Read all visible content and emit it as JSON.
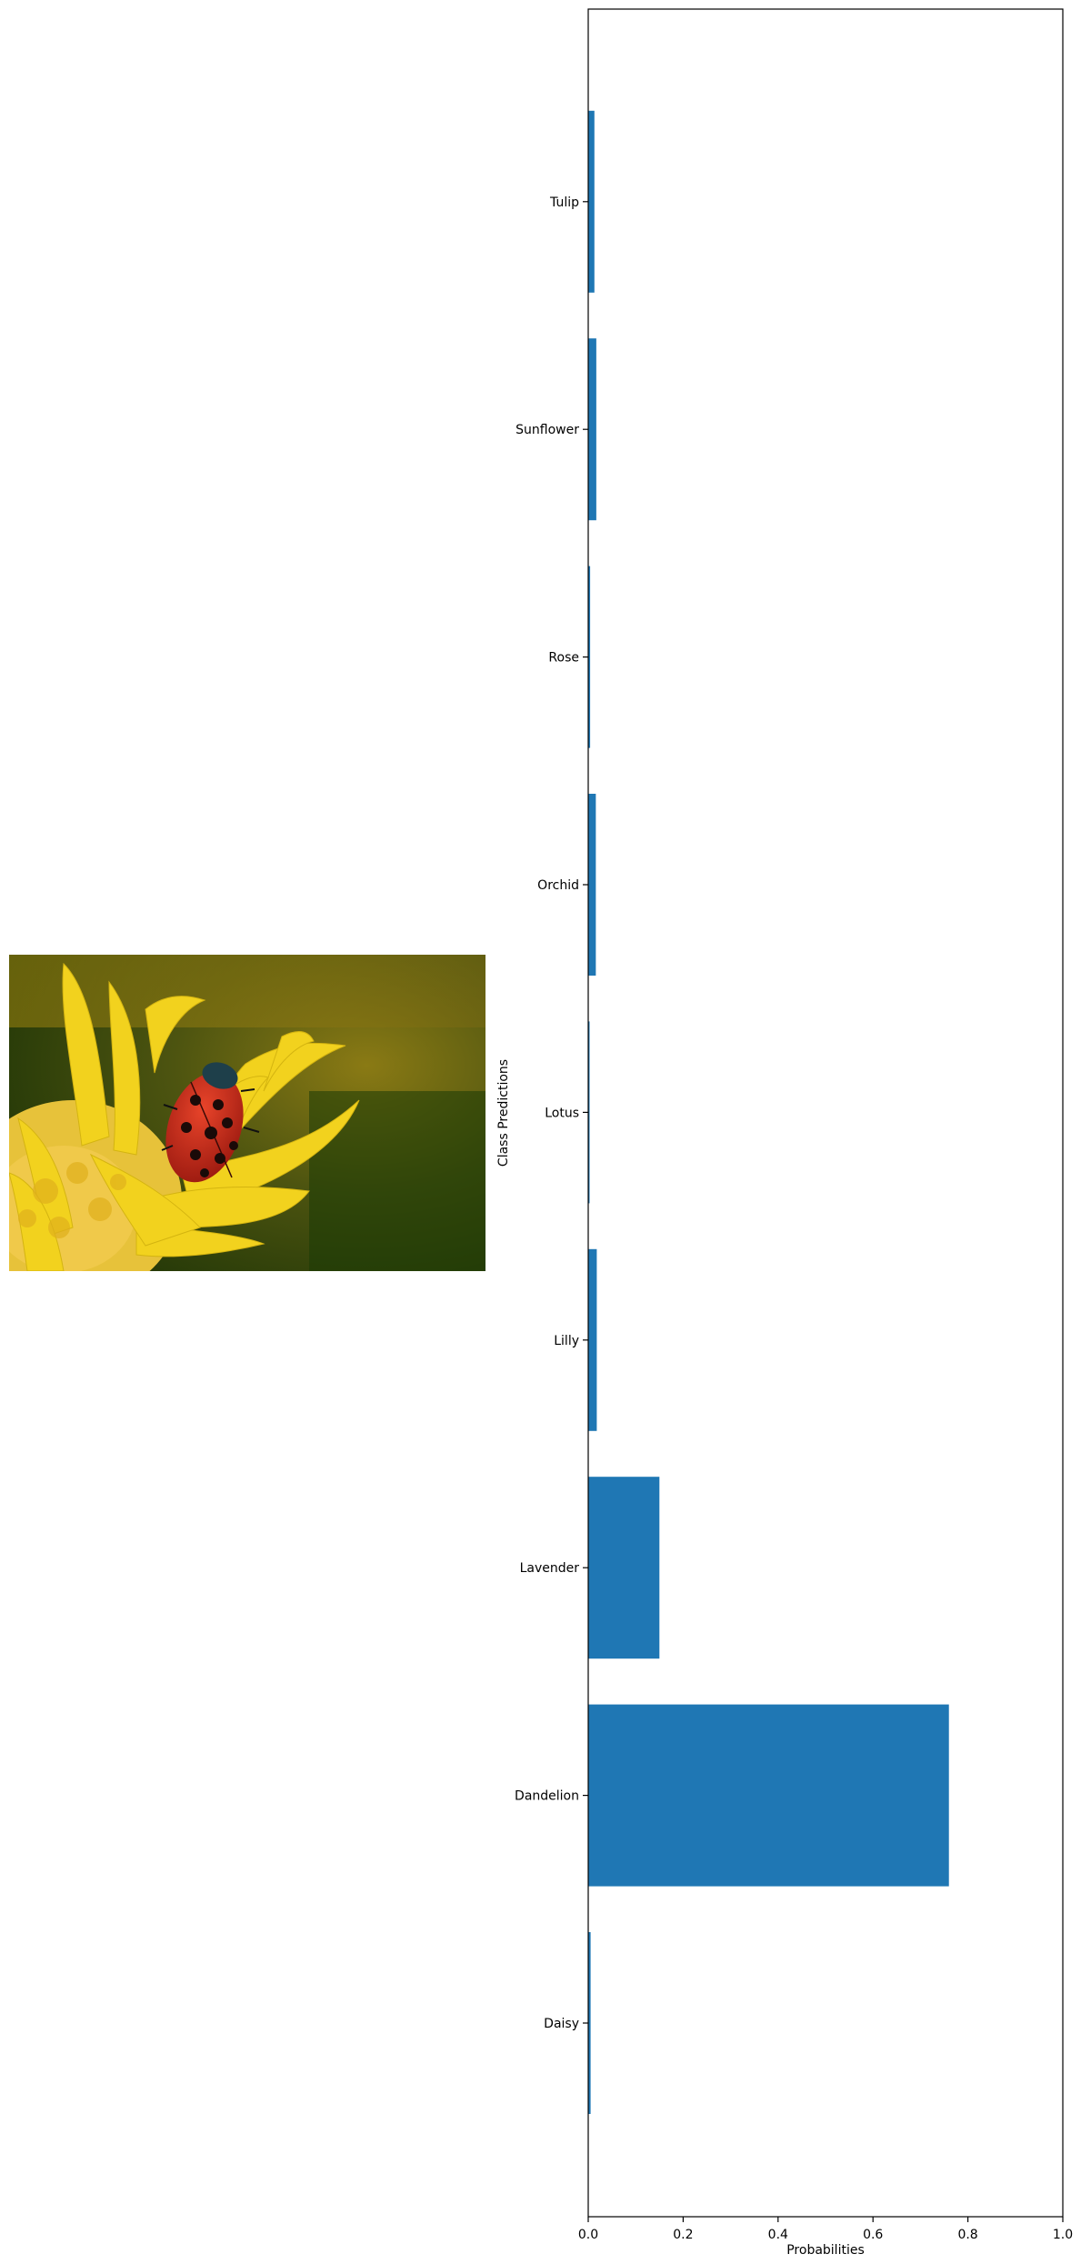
{
  "chart_data": {
    "type": "bar",
    "orientation": "horizontal",
    "categories": [
      "Daisy",
      "Dandelion",
      "Lavender",
      "Lilly",
      "Lotus",
      "Orchid",
      "Rose",
      "Sunflower",
      "Tulip"
    ],
    "values": [
      0.005,
      0.76,
      0.15,
      0.018,
      0.002,
      0.016,
      0.004,
      0.017,
      0.013
    ],
    "xlabel": "Probabilities",
    "ylabel": "Class Predictions",
    "xlim": [
      0,
      1.0
    ],
    "xticks": [
      "0.0",
      "0.2",
      "0.4",
      "0.6",
      "0.8",
      "1.0"
    ],
    "bar_color": "#1f77b4",
    "grid": false,
    "legend": "none"
  },
  "image": {
    "subject": "ladybug-on-yellow-flower-photo"
  }
}
